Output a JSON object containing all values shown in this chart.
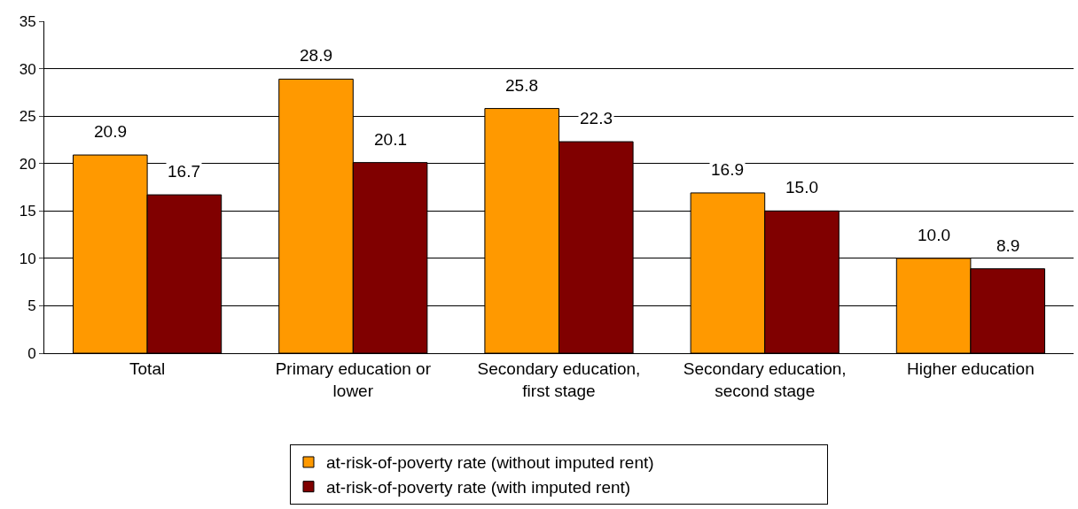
{
  "chart_data": {
    "type": "bar",
    "categories": [
      "Total",
      "Primary education or\nlower",
      "Secondary education,\nfirst stage",
      "Secondary education,\nsecond stage",
      "Higher education"
    ],
    "series": [
      {
        "name": "at-risk-of-poverty rate (without imputed rent)",
        "color": "#ff9900",
        "values": [
          20.9,
          28.9,
          25.8,
          16.9,
          10.0
        ],
        "value_labels": [
          "20.9",
          "28.9",
          "25.8",
          "16.9",
          "10.0"
        ]
      },
      {
        "name": "at-risk-of-poverty rate (with imputed rent)",
        "color": "#800000",
        "values": [
          16.7,
          20.1,
          22.3,
          15.0,
          8.9
        ],
        "value_labels": [
          "16.7",
          "20.1",
          "22.3",
          "15.0",
          "8.9"
        ]
      }
    ],
    "ylim": [
      0,
      35
    ],
    "yticks": [
      0,
      5,
      10,
      15,
      20,
      25,
      30,
      35
    ],
    "grid": "y",
    "legend": "bottom"
  }
}
